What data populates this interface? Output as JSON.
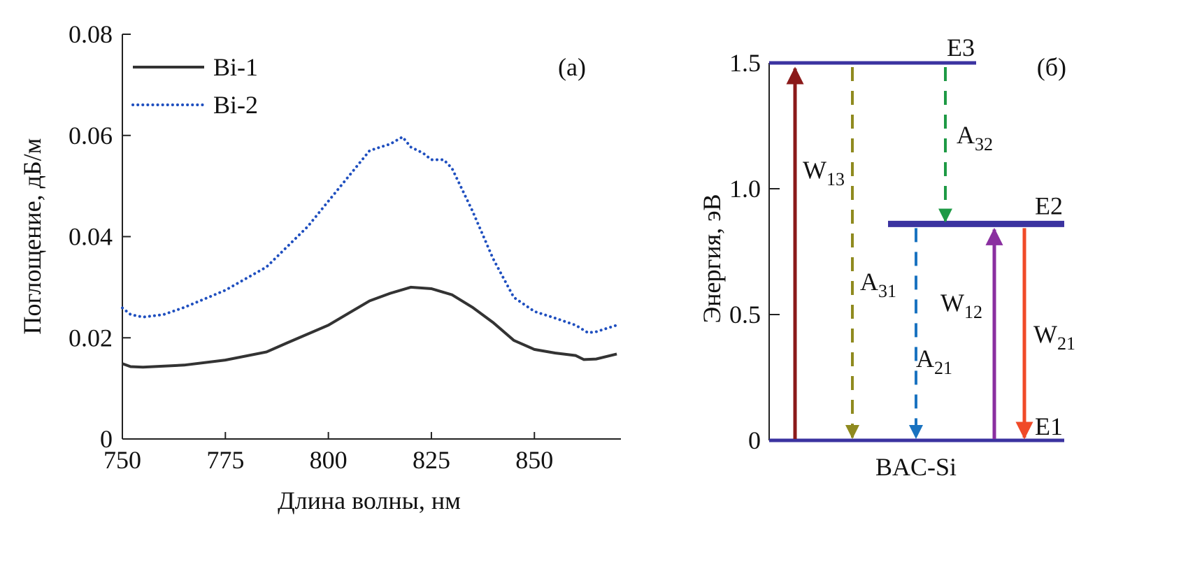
{
  "chart_data": [
    {
      "type": "line",
      "panel_label": "(a)",
      "xlabel": "Длина волны, нм",
      "ylabel": "Поглощение, дБ/м",
      "xlim": [
        750,
        871
      ],
      "ylim": [
        0,
        0.08
      ],
      "xticks": [
        "750",
        "775",
        "800",
        "825",
        "850"
      ],
      "yticks": [
        "0",
        "0.02",
        "0.04",
        "0.06",
        "0.08"
      ],
      "legend_position": "top-left",
      "grid": false,
      "series": [
        {
          "name": "Bi-1",
          "color": "#333333",
          "style": "solid",
          "x": [
            750,
            752,
            755,
            765,
            775,
            785,
            790,
            800,
            810,
            815,
            820,
            825,
            830,
            835,
            840,
            845,
            850,
            855,
            860,
            862,
            865,
            870
          ],
          "y": [
            0.0149,
            0.0143,
            0.0142,
            0.0146,
            0.0156,
            0.0172,
            0.019,
            0.0225,
            0.0273,
            0.0288,
            0.03,
            0.0297,
            0.0285,
            0.026,
            0.023,
            0.0195,
            0.0177,
            0.017,
            0.0165,
            0.0157,
            0.0158,
            0.0168
          ]
        },
        {
          "name": "Bi-2",
          "color": "#1f4fbf",
          "style": "dotted",
          "x": [
            750,
            752,
            755,
            760,
            765,
            775,
            785,
            795,
            800,
            805,
            810,
            813,
            815,
            818,
            820,
            823,
            825,
            828,
            830,
            835,
            840,
            845,
            850,
            855,
            860,
            863,
            865,
            870
          ],
          "y": [
            0.0259,
            0.0246,
            0.0241,
            0.0246,
            0.026,
            0.0294,
            0.034,
            0.042,
            0.047,
            0.052,
            0.057,
            0.0578,
            0.0583,
            0.0597,
            0.0577,
            0.0565,
            0.0552,
            0.0552,
            0.0535,
            0.045,
            0.0356,
            0.028,
            0.0252,
            0.0239,
            0.0225,
            0.021,
            0.0212,
            0.0225
          ]
        }
      ]
    },
    {
      "type": "diagram",
      "panel_label": "(б)",
      "xlabel": "BAC-Si",
      "ylabel": "Энергия, эВ",
      "ylim": [
        0,
        1.5
      ],
      "yticks": [
        "0",
        "0.5",
        "1.0",
        "1.5"
      ],
      "levels": [
        {
          "name": "E1",
          "energy": 0
        },
        {
          "name": "E2",
          "energy": 0.86
        },
        {
          "name": "E3",
          "energy": 1.5
        }
      ],
      "transitions": [
        {
          "label": "W",
          "sub": "13",
          "from": 0,
          "to": 1.5,
          "color": "#8b1a1a",
          "style": "solid"
        },
        {
          "label": "A",
          "sub": "31",
          "from": 1.5,
          "to": 0,
          "color": "#8f8a1f",
          "style": "dashed"
        },
        {
          "label": "A",
          "sub": "32",
          "from": 1.5,
          "to": 0.86,
          "color": "#1e9a45",
          "style": "dashed"
        },
        {
          "label": "A",
          "sub": "21",
          "from": 0.86,
          "to": 0,
          "color": "#1a73c0",
          "style": "dashed"
        },
        {
          "label": "W",
          "sub": "12",
          "from": 0,
          "to": 0.86,
          "color": "#8a2fa0",
          "style": "solid"
        },
        {
          "label": "W",
          "sub": "21",
          "from": 0.86,
          "to": 0,
          "color": "#f04a28",
          "style": "solid"
        }
      ],
      "level_color": "#3b33a0"
    }
  ]
}
